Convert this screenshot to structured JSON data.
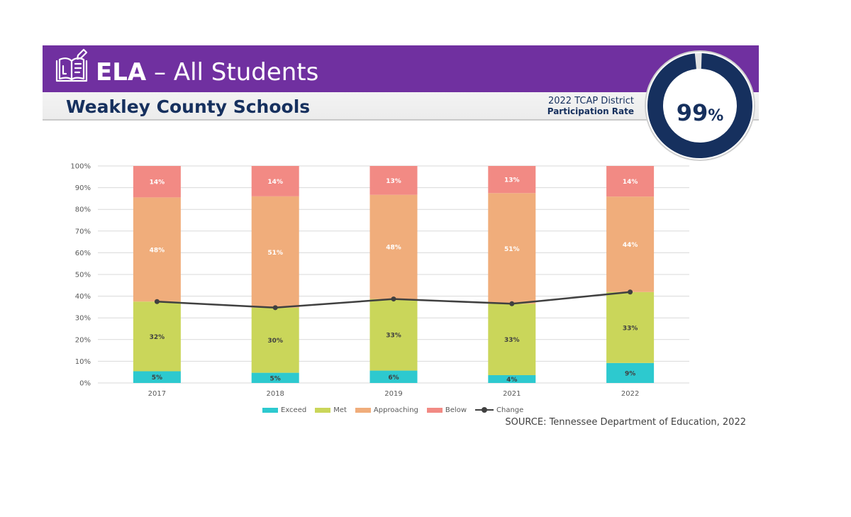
{
  "header": {
    "subject": "ELA",
    "title_rest": " – All Students",
    "district": "Weakley County Schools",
    "participation_line1": "2022 TCAP District",
    "participation_line2": "Participation Rate",
    "participation_value": "99",
    "participation_unit": "%",
    "participation_fraction": 0.99,
    "icon": "open-book-pencil-icon"
  },
  "colors": {
    "banner": "#7030a0",
    "navy": "#16305e",
    "exceed": "#2dc9cf",
    "met": "#cad65a",
    "approaching": "#f0ad7b",
    "below": "#f28a84",
    "change": "#404040",
    "grid": "#d9d9d9"
  },
  "chart_data": {
    "type": "bar",
    "stacked": true,
    "categories": [
      "2017",
      "2018",
      "2019",
      "2021",
      "2022"
    ],
    "ylim": [
      0,
      100
    ],
    "yticks": [
      "0%",
      "10%",
      "20%",
      "30%",
      "40%",
      "50%",
      "60%",
      "70%",
      "80%",
      "90%",
      "100%"
    ],
    "grid": true,
    "legend_position": "bottom",
    "series": [
      {
        "name": "Exceed",
        "key": "exceed",
        "values": [
          5.4,
          4.7,
          5.7,
          3.6,
          9.2
        ],
        "labels": [
          "5%",
          "5%",
          "6%",
          "4%",
          "9%"
        ]
      },
      {
        "name": "Met",
        "key": "met",
        "values": [
          32.1,
          30.0,
          33.0,
          32.9,
          32.7
        ],
        "labels": [
          "32%",
          "30%",
          "33%",
          "33%",
          "33%"
        ]
      },
      {
        "name": "Approaching",
        "key": "approaching",
        "values": [
          48.0,
          51.3,
          48.0,
          51.0,
          44.0
        ],
        "labels": [
          "48%",
          "51%",
          "48%",
          "51%",
          "44%"
        ]
      },
      {
        "name": "Below",
        "key": "below",
        "values": [
          14.5,
          14.0,
          13.3,
          12.5,
          14.1
        ],
        "labels": [
          "14%",
          "14%",
          "13%",
          "13%",
          "14%"
        ]
      }
    ],
    "line": {
      "name": "Change",
      "values": [
        37.5,
        34.7,
        38.7,
        36.5,
        41.9
      ]
    }
  },
  "footer": {
    "source": "SOURCE: Tennessee Department of Education, 2022"
  }
}
